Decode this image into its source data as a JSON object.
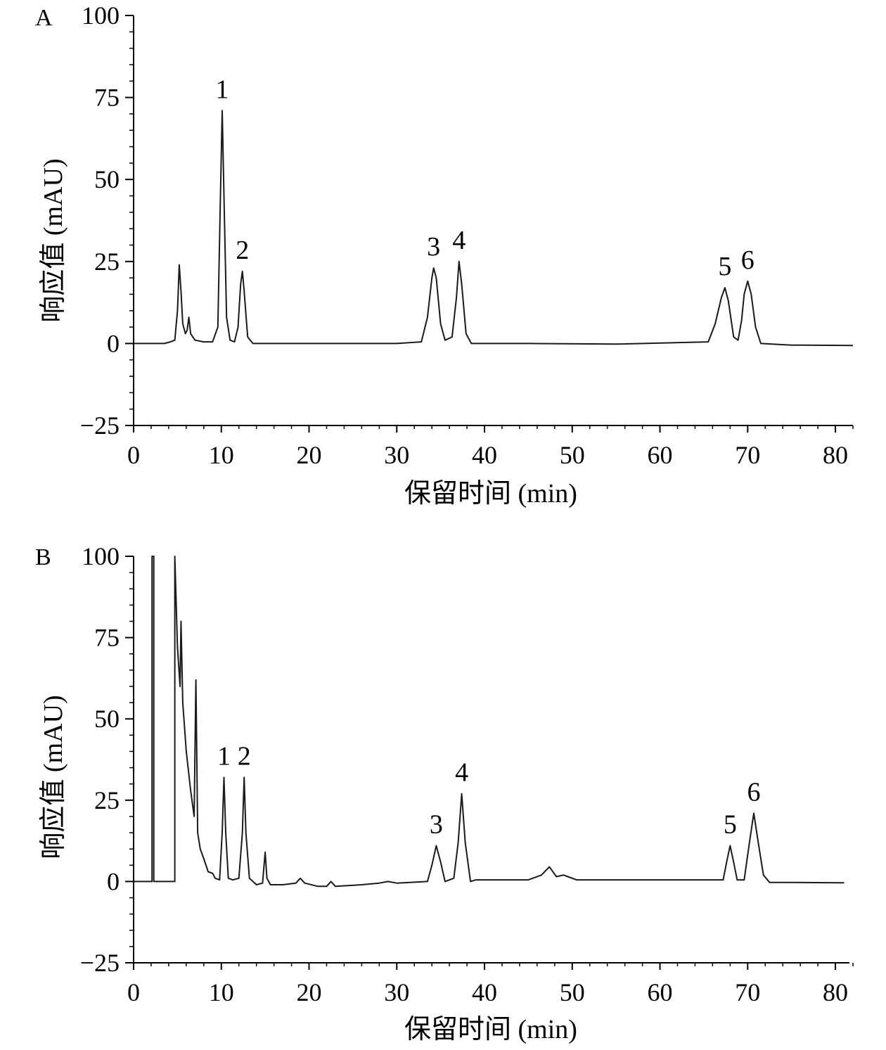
{
  "chart_data": [
    {
      "panel": "A",
      "type": "line",
      "xlabel": "保留时间 (min)",
      "ylabel": "响应值 (mAU)",
      "xlim": [
        0,
        82
      ],
      "ylim": [
        -25,
        100
      ],
      "xticks": [
        0,
        10,
        20,
        30,
        40,
        50,
        60,
        70,
        80
      ],
      "yticks": [
        -25,
        0,
        25,
        50,
        75,
        100
      ],
      "ytick_labels": [
        "−25",
        "0",
        "25",
        "50",
        "75",
        "100"
      ],
      "x": [
        0,
        3.5,
        4.2,
        4.7,
        5.0,
        5.2,
        5.4,
        5.6,
        5.9,
        6.1,
        6.3,
        6.5,
        7.0,
        8.0,
        9.0,
        9.6,
        9.9,
        10.1,
        10.3,
        10.6,
        11.0,
        11.5,
        11.9,
        12.2,
        12.4,
        12.6,
        13.0,
        13.6,
        20,
        30,
        32.8,
        33.5,
        34.0,
        34.2,
        34.5,
        35.0,
        35.5,
        36.3,
        36.8,
        37.1,
        37.4,
        37.9,
        38.5,
        45,
        55,
        65.5,
        66.3,
        67.0,
        67.4,
        67.8,
        68.4,
        68.9,
        69.3,
        69.6,
        70.0,
        70.4,
        70.9,
        71.5,
        75,
        82
      ],
      "y": [
        0,
        0,
        0.5,
        1,
        10,
        24,
        16,
        6,
        3,
        4,
        8,
        3,
        1,
        0.5,
        0.5,
        5,
        45,
        71,
        45,
        8,
        1,
        0.5,
        5,
        18,
        22,
        16,
        2,
        0,
        0,
        0,
        0.5,
        8,
        20,
        23,
        20,
        6,
        1,
        2,
        14,
        25,
        18,
        3,
        0,
        0,
        -0.2,
        0.5,
        6,
        14,
        17,
        13,
        2,
        1,
        7,
        15,
        19,
        15,
        5,
        0,
        -0.5,
        -0.6
      ],
      "peaks": [
        {
          "label": "1",
          "x": 10.1,
          "y": 71
        },
        {
          "label": "2",
          "x": 12.4,
          "y": 22
        },
        {
          "label": "3",
          "x": 34.2,
          "y": 23
        },
        {
          "label": "4",
          "x": 37.1,
          "y": 25
        },
        {
          "label": "5",
          "x": 67.4,
          "y": 17
        },
        {
          "label": "6",
          "x": 70.0,
          "y": 19
        }
      ]
    },
    {
      "panel": "B",
      "type": "line",
      "xlabel": "保留时间 (min)",
      "ylabel": "响应值 (mAU)",
      "xlim": [
        0,
        82
      ],
      "ylim": [
        -25,
        100
      ],
      "xticks": [
        0,
        10,
        20,
        30,
        40,
        50,
        60,
        70,
        80
      ],
      "yticks": [
        -25,
        0,
        25,
        50,
        75,
        100
      ],
      "ytick_labels": [
        "−25",
        "0",
        "25",
        "50",
        "75",
        "100"
      ],
      "x": [
        0,
        2.1,
        2.1,
        2.3,
        2.3,
        4.7,
        4.7,
        5.0,
        5.3,
        5.4,
        5.6,
        6.0,
        6.5,
        6.9,
        7.1,
        7.3,
        7.6,
        8.0,
        8.5,
        9.0,
        9.3,
        9.8,
        10.1,
        10.3,
        10.5,
        10.8,
        11.3,
        12.0,
        12.4,
        12.6,
        12.8,
        13.2,
        14.0,
        14.7,
        15.0,
        15.2,
        15.6,
        17,
        18.5,
        19.0,
        19.5,
        21,
        22.0,
        22.5,
        23,
        26,
        28,
        29,
        30,
        33.5,
        34.0,
        34.5,
        35.0,
        35.5,
        36.5,
        37.0,
        37.4,
        37.8,
        38.4,
        39,
        45,
        46.5,
        47.4,
        48.2,
        49.0,
        49.5,
        50.5,
        55,
        65,
        67.2,
        67.6,
        68.0,
        68.4,
        68.8,
        69.6,
        70.2,
        70.7,
        71.2,
        71.8,
        72.5,
        75,
        81
      ],
      "y": [
        0,
        0,
        100,
        100,
        0,
        0,
        100,
        72,
        60,
        80,
        55,
        40,
        28,
        20,
        62,
        15,
        10,
        7,
        3,
        2.5,
        1,
        0.5,
        15,
        32,
        15,
        1,
        0.5,
        1,
        15,
        32,
        15,
        1,
        -1,
        -0.5,
        9,
        1,
        -1,
        -1,
        -0.5,
        1,
        -0.5,
        -1.5,
        -1.5,
        0,
        -1.5,
        -1,
        -0.5,
        0,
        -0.5,
        0,
        5,
        11,
        6,
        0,
        1,
        12,
        27,
        12,
        0,
        0.5,
        0.5,
        2,
        4.5,
        1.5,
        2,
        1.5,
        0.5,
        0.5,
        0.5,
        0.5,
        6,
        11,
        6,
        0.5,
        0.5,
        12,
        21,
        12,
        2,
        -0.3,
        -0.3,
        -0.4
      ],
      "peaks": [
        {
          "label": "1",
          "x": 10.3,
          "y": 32
        },
        {
          "label": "2",
          "x": 12.6,
          "y": 32
        },
        {
          "label": "3",
          "x": 34.5,
          "y": 11
        },
        {
          "label": "4",
          "x": 37.4,
          "y": 27
        },
        {
          "label": "5",
          "x": 68.0,
          "y": 11
        },
        {
          "label": "6",
          "x": 70.7,
          "y": 21
        }
      ]
    }
  ]
}
